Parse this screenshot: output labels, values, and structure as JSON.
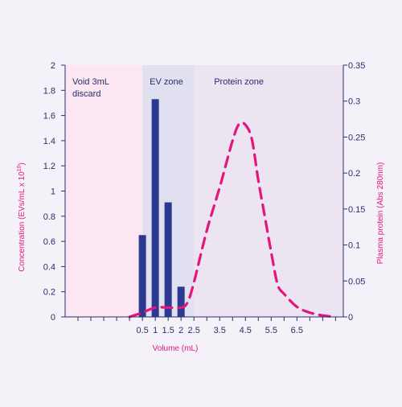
{
  "chart_data": {
    "type": "bar",
    "title": "",
    "xlabel": "Volume (mL)",
    "ylabel_left_main": "Concentration (EVs/mL x 10",
    "ylabel_left_sup": "10",
    "ylabel_left_end": ")",
    "ylabel_right": "Plasma protein (Abs 280nm)",
    "xlim": [
      -2.5,
      8.3
    ],
    "ylim_left": [
      0,
      2
    ],
    "ylim_right": [
      0,
      0.35
    ],
    "x_ticks": [
      "0.5",
      "1.5",
      "2.5",
      "3.5",
      "4.5",
      "5.5",
      "6.5"
    ],
    "x_tick_values": [
      0.5,
      1.5,
      2.5,
      3.5,
      4.5,
      5.5,
      6.5
    ],
    "x_tick_label_pairs": [
      {
        "value": 0.5,
        "label": "0.5"
      },
      {
        "value": 1.0,
        "label": "1"
      },
      {
        "value": 1.5,
        "label": "1.5"
      },
      {
        "value": 2.0,
        "label": "2"
      },
      {
        "value": 2.5,
        "label": "2.5"
      },
      {
        "value": 3.5,
        "label": "3.5"
      },
      {
        "value": 4.5,
        "label": "4.5"
      },
      {
        "value": 5.5,
        "label": "5.5"
      },
      {
        "value": 6.5,
        "label": "6.5"
      }
    ],
    "left_ticks": [
      "0",
      "0.2",
      "0.4",
      "0.6",
      "0.8",
      "1",
      "1.2",
      "1.4",
      "1.6",
      "1.8",
      "2"
    ],
    "left_tick_values": [
      0,
      0.2,
      0.4,
      0.6,
      0.8,
      1.0,
      1.2,
      1.4,
      1.6,
      1.8,
      2.0
    ],
    "right_ticks": [
      "0",
      "0.05",
      "0.1",
      "0.15",
      "0.2",
      "0.25",
      "0.3",
      "0.35"
    ],
    "right_tick_values": [
      0,
      0.05,
      0.1,
      0.15,
      0.2,
      0.25,
      0.3,
      0.35
    ],
    "zones": [
      {
        "label_lines": [
          "Void 3mL",
          "discard"
        ],
        "from": -2.5,
        "to": 0.5,
        "color": "#fbe6f1"
      },
      {
        "label_lines": [
          "EV zone"
        ],
        "from": 0.5,
        "to": 2.5,
        "color": "#e1e0f0"
      },
      {
        "label_lines": [
          "Protein zone"
        ],
        "from": 2.5,
        "to": 8.3,
        "color": "#ede4f2"
      }
    ],
    "series": [
      {
        "kind": "bar",
        "axis": "left",
        "color": "#2b3990",
        "x": [
          0.5,
          1.0,
          1.5,
          2.0
        ],
        "values": [
          0.65,
          1.73,
          0.91,
          0.24
        ]
      },
      {
        "kind": "line",
        "axis": "right",
        "style": "dashed",
        "color": "#e4157c",
        "x": [
          0.0,
          0.5,
          1.0,
          1.5,
          2.0,
          2.25,
          2.5,
          3.0,
          3.5,
          4.0,
          4.25,
          4.5,
          4.75,
          5.0,
          5.25,
          5.5,
          5.75,
          6.0,
          6.5,
          7.0,
          7.5,
          8.0
        ],
        "values": [
          0.0,
          0.006,
          0.013,
          0.013,
          0.013,
          0.02,
          0.048,
          0.12,
          0.18,
          0.245,
          0.268,
          0.267,
          0.247,
          0.19,
          0.14,
          0.09,
          0.045,
          0.032,
          0.014,
          0.006,
          0.002,
          0.0
        ]
      }
    ]
  }
}
